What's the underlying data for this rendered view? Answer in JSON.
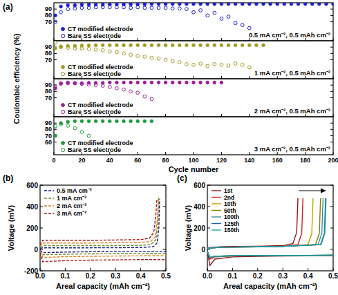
{
  "chart_data": [
    {
      "type": "scatter",
      "title": "(a)",
      "ylabel": "Coulombic efficiency (%)",
      "annotation": "0.5 mA cm⁻², 0.5 mAh cm⁻²",
      "xlim": [
        0,
        200
      ],
      "ylim": [
        40,
        100
      ],
      "xticks": [
        0,
        20,
        40,
        60,
        80,
        100,
        120,
        140,
        160,
        180,
        200
      ],
      "yticks": [
        70,
        80,
        90
      ],
      "tick_labels": "y",
      "legend": "lower left",
      "grid": false,
      "series": [
        {
          "name": "CT modified electrode",
          "color": "#1c1cd8",
          "marker": "filled_circle",
          "x": [
            1,
            5,
            10,
            15,
            20,
            25,
            30,
            35,
            40,
            45,
            50,
            55,
            60,
            65,
            70,
            75,
            80,
            85,
            90,
            95,
            100,
            105,
            110,
            115,
            120,
            125,
            130,
            135,
            140,
            145,
            150,
            155,
            160,
            165,
            170,
            175,
            180,
            185,
            190,
            195,
            200
          ],
          "values": [
            80,
            94,
            96,
            96,
            97,
            97,
            97,
            97,
            97.5,
            97.5,
            97.5,
            97.5,
            97.5,
            97.5,
            98,
            98,
            98,
            98,
            98,
            98,
            98,
            98,
            98,
            98,
            98,
            98,
            98,
            98,
            98,
            98,
            98,
            98,
            98,
            98,
            98,
            98,
            98,
            98,
            98,
            98,
            98
          ]
        },
        {
          "name": "Bare SS electrode",
          "color": "#1c1cd8",
          "marker": "open_circle",
          "x": [
            1,
            5,
            10,
            15,
            20,
            25,
            30,
            35,
            40,
            45,
            50,
            55,
            60,
            65,
            70,
            75,
            80,
            85,
            90,
            95,
            100,
            105,
            110,
            115,
            120,
            125,
            130,
            135,
            140
          ],
          "values": [
            70,
            85,
            90,
            91,
            92,
            92,
            93,
            93,
            93,
            93,
            93,
            92,
            93,
            92,
            92,
            92,
            92,
            91,
            91,
            90,
            85,
            88,
            80,
            84,
            75,
            78,
            68,
            65,
            60
          ]
        }
      ]
    },
    {
      "type": "scatter",
      "annotation": "1 mA cm⁻², 0.5 mAh cm⁻²",
      "xlim": [
        0,
        200
      ],
      "ylim": [
        40,
        100
      ],
      "xticks": [
        0,
        20,
        40,
        60,
        80,
        100,
        120,
        140,
        160,
        180,
        200
      ],
      "yticks": [
        70,
        80,
        90
      ],
      "tick_labels": "y",
      "legend": "lower left",
      "grid": false,
      "series": [
        {
          "name": "CT modified electrode",
          "color": "#a09a1e",
          "marker": "filled_circle",
          "x": [
            1,
            5,
            10,
            15,
            20,
            25,
            30,
            35,
            40,
            45,
            50,
            55,
            60,
            65,
            70,
            75,
            80,
            85,
            90,
            95,
            100,
            105,
            110,
            115,
            120,
            125,
            130,
            135,
            140,
            145,
            150
          ],
          "values": [
            88,
            91,
            92,
            92,
            92.5,
            92.5,
            93,
            93,
            93,
            93,
            93,
            93,
            93,
            93,
            93,
            93,
            93,
            93,
            93,
            93,
            93,
            93,
            93,
            93,
            93,
            93,
            93,
            93,
            93,
            93,
            93
          ]
        },
        {
          "name": "Bare SS electrode",
          "color": "#a09a1e",
          "marker": "open_circle",
          "x": [
            1,
            5,
            10,
            15,
            20,
            25,
            30,
            35,
            40,
            45,
            50,
            55,
            60,
            65,
            70,
            75,
            80,
            85,
            90,
            95,
            100,
            105,
            110,
            115,
            120,
            125,
            130,
            135,
            140
          ],
          "values": [
            97,
            90,
            89,
            88,
            88,
            87,
            86,
            85,
            83,
            82,
            80,
            78,
            76,
            75,
            73,
            72,
            70,
            68,
            66,
            63,
            62,
            64,
            60,
            63,
            62,
            61,
            64,
            62,
            58
          ]
        }
      ]
    },
    {
      "type": "scatter",
      "annotation": "2 mA cm⁻², 0.5 mAh cm⁻²",
      "xlim": [
        0,
        200
      ],
      "ylim": [
        40,
        100
      ],
      "xticks": [
        0,
        20,
        40,
        60,
        80,
        100,
        120,
        140,
        160,
        180,
        200
      ],
      "yticks": [
        70,
        80,
        90
      ],
      "tick_labels": "y",
      "legend": "lower left",
      "grid": false,
      "series": [
        {
          "name": "CT modified electrode",
          "color": "#9b1f9b",
          "marker": "filled_circle",
          "x": [
            1,
            5,
            10,
            15,
            20,
            25,
            30,
            35,
            40,
            45,
            50,
            55,
            60,
            65,
            70,
            75,
            80,
            85,
            90,
            95,
            100,
            105,
            110,
            115,
            120
          ],
          "values": [
            85,
            92,
            93,
            93,
            93,
            93.5,
            93.5,
            93.5,
            94,
            94,
            94,
            94,
            94,
            94,
            94,
            94,
            94,
            94,
            94,
            94,
            94,
            94,
            94,
            94,
            94
          ]
        },
        {
          "name": "Bare SS electrode",
          "color": "#9b1f9b",
          "marker": "open_circle",
          "x": [
            1,
            5,
            10,
            15,
            20,
            25,
            30,
            35,
            40,
            45,
            50,
            55,
            60,
            65,
            70
          ],
          "values": [
            88,
            93,
            94,
            93,
            92,
            91,
            90,
            89,
            87,
            85,
            83,
            80,
            78,
            72,
            68
          ]
        }
      ]
    },
    {
      "type": "scatter",
      "xlabel": "Cycle number",
      "annotation": "3 mA cm⁻², 0.5 mAh cm⁻²",
      "xlim": [
        0,
        200
      ],
      "ylim": [
        40,
        100
      ],
      "xticks": [
        0,
        20,
        40,
        60,
        80,
        100,
        120,
        140,
        160,
        180,
        200
      ],
      "yticks": [
        60,
        70,
        80,
        90
      ],
      "legend": "lower left",
      "grid": false,
      "series": [
        {
          "name": "CT modified electrode",
          "color": "#1e9b3c",
          "marker": "filled_circle",
          "x": [
            1,
            5,
            10,
            15,
            20,
            25,
            30,
            35,
            40,
            45,
            50,
            55,
            60,
            65,
            70
          ],
          "values": [
            70,
            90,
            92,
            93,
            93,
            93,
            93,
            93,
            93,
            93,
            93,
            93,
            93,
            93,
            93
          ]
        },
        {
          "name": "Bare SS electrode",
          "color": "#1e9b3c",
          "marker": "open_circle",
          "x": [
            1,
            5,
            10,
            15,
            20,
            25
          ],
          "values": [
            85,
            88,
            86,
            82,
            76,
            70
          ]
        }
      ]
    },
    {
      "type": "line",
      "title": "(b)",
      "xlabel": "Areal capacity (mAh cm⁻²)",
      "ylabel": "Voltage (mV)",
      "xlim": [
        0,
        0.5
      ],
      "ylim": [
        -200,
        600
      ],
      "xticks": [
        {
          "value": 0,
          "label": "0.0"
        },
        {
          "value": 0.1,
          "label": "0.1"
        },
        {
          "value": 0.2,
          "label": "0.2"
        },
        {
          "value": 0.3,
          "label": "0.3"
        },
        {
          "value": 0.4,
          "label": "0.4"
        },
        {
          "value": 0.5,
          "label": "0.5"
        }
      ],
      "yticks": [
        -200,
        0,
        200,
        400,
        600
      ],
      "legend": "upper left",
      "grid": false,
      "series": [
        {
          "name": "0.5 mA cm⁻²",
          "color": "#1a1a8c",
          "line_style": "dashed",
          "x": [
            0,
            0.01,
            0.1,
            0.2,
            0.3,
            0.4,
            0.5,
            null,
            0,
            0.01,
            0.1,
            0.2,
            0.3,
            0.4,
            0.45,
            0.465,
            0.472,
            0.475
          ],
          "values": [
            -10,
            -30,
            -25,
            -22,
            -20,
            -20,
            -20,
            null,
            10,
            15,
            15,
            15,
            16,
            18,
            25,
            60,
            200,
            470
          ]
        },
        {
          "name": "1 mA cm⁻²",
          "color": "#6b8e23",
          "line_style": "dashed",
          "x": [
            0,
            0.01,
            0.1,
            0.2,
            0.3,
            0.4,
            0.5,
            null,
            0,
            0.01,
            0.1,
            0.2,
            0.3,
            0.4,
            0.44,
            0.46,
            0.468,
            0.472
          ],
          "values": [
            -15,
            -50,
            -45,
            -42,
            -40,
            -40,
            -40,
            null,
            20,
            35,
            35,
            35,
            36,
            38,
            45,
            90,
            250,
            490
          ]
        },
        {
          "name": "2 mA cm⁻²",
          "color": "#e08020",
          "line_style": "dashed",
          "x": [
            0,
            0.01,
            0.1,
            0.2,
            0.3,
            0.4,
            0.5,
            null,
            0,
            0.01,
            0.1,
            0.2,
            0.3,
            0.4,
            0.44,
            0.458,
            0.466,
            0.47
          ],
          "values": [
            -20,
            -75,
            -68,
            -65,
            -62,
            -60,
            -60,
            null,
            30,
            60,
            60,
            60,
            62,
            65,
            75,
            120,
            280,
            480
          ]
        },
        {
          "name": "3 mA cm⁻²",
          "color": "#a01818",
          "line_style": "dashed",
          "x": [
            0,
            0.01,
            0.1,
            0.2,
            0.3,
            0.4,
            0.5,
            null,
            0,
            0.01,
            0.1,
            0.2,
            0.3,
            0.4,
            0.435,
            0.452,
            0.46,
            0.464
          ],
          "values": [
            -30,
            -115,
            -105,
            -100,
            -98,
            -95,
            -95,
            null,
            40,
            85,
            85,
            85,
            88,
            92,
            105,
            160,
            320,
            470
          ]
        }
      ]
    },
    {
      "type": "line",
      "title": "(c)",
      "xlabel": "Areal capacity (mAh cm⁻²)",
      "ylabel": "Voltage (mV)",
      "xlim": [
        0,
        0.5
      ],
      "ylim": [
        -200,
        600
      ],
      "xticks": [
        {
          "value": 0,
          "label": "0.0"
        },
        {
          "value": 0.1,
          "label": "0.1"
        },
        {
          "value": 0.2,
          "label": "0.2"
        },
        {
          "value": 0.3,
          "label": "0.3"
        },
        {
          "value": 0.4,
          "label": "0.4"
        },
        {
          "value": 0.5,
          "label": "0.5"
        }
      ],
      "yticks": [
        0,
        200,
        400,
        600
      ],
      "legend": "upper left",
      "grid": false,
      "series": [
        {
          "name": "1st",
          "color": "#8b1a1a",
          "line_style": "solid",
          "x": [
            0,
            0.01,
            0.03,
            0.1,
            0.2,
            0.3,
            0.4,
            0.5,
            null,
            0,
            0.05,
            0.1,
            0.2,
            0.3,
            0.34,
            0.355,
            0.36
          ],
          "values": [
            -20,
            -150,
            -90,
            -70,
            -65,
            -62,
            -60,
            -60,
            null,
            15,
            25,
            27,
            30,
            35,
            55,
            160,
            480
          ]
        },
        {
          "name": "2nd",
          "color": "#d62020",
          "line_style": "solid",
          "x": [
            0,
            0.01,
            0.03,
            0.1,
            0.2,
            0.3,
            0.4,
            0.5,
            null,
            0,
            0.05,
            0.1,
            0.2,
            0.3,
            0.36,
            0.375,
            0.38
          ],
          "values": [
            -20,
            -90,
            -70,
            -62,
            -60,
            -58,
            -57,
            -57,
            null,
            10,
            20,
            22,
            24,
            28,
            45,
            150,
            480
          ]
        },
        {
          "name": "10th",
          "color": "#c8a000",
          "line_style": "solid",
          "x": [
            0,
            0.01,
            0.03,
            0.1,
            0.2,
            0.3,
            0.4,
            0.5,
            null,
            0,
            0.05,
            0.1,
            0.2,
            0.3,
            0.4,
            0.415,
            0.42
          ],
          "values": [
            -20,
            -75,
            -65,
            -60,
            -58,
            -57,
            -56,
            -55,
            null,
            10,
            20,
            22,
            24,
            28,
            45,
            150,
            480
          ]
        },
        {
          "name": "50th",
          "color": "#808000",
          "line_style": "solid",
          "x": [
            0,
            0.01,
            0.03,
            0.1,
            0.2,
            0.3,
            0.4,
            0.5,
            null,
            0,
            0.05,
            0.1,
            0.2,
            0.3,
            0.43,
            0.445,
            0.45
          ],
          "values": [
            -20,
            -75,
            -65,
            -60,
            -58,
            -57,
            -56,
            -55,
            null,
            10,
            20,
            22,
            24,
            28,
            45,
            150,
            480
          ]
        },
        {
          "name": "100th",
          "color": "#3a9090",
          "line_style": "solid",
          "x": [
            0,
            0.01,
            0.03,
            0.1,
            0.2,
            0.3,
            0.4,
            0.5,
            null,
            0,
            0.05,
            0.1,
            0.2,
            0.3,
            0.44,
            0.455,
            0.46
          ],
          "values": [
            -20,
            -75,
            -65,
            -60,
            -58,
            -57,
            -56,
            -55,
            null,
            10,
            20,
            22,
            24,
            28,
            45,
            150,
            480
          ]
        },
        {
          "name": "125th",
          "color": "#2060c0",
          "line_style": "solid",
          "x": [
            0,
            0.01,
            0.03,
            0.1,
            0.2,
            0.3,
            0.4,
            0.5,
            null,
            0,
            0.05,
            0.1,
            0.2,
            0.3,
            0.45,
            0.465,
            0.47
          ],
          "values": [
            -20,
            -75,
            -65,
            -60,
            -58,
            -57,
            -56,
            -55,
            null,
            10,
            20,
            22,
            24,
            28,
            45,
            150,
            480
          ]
        },
        {
          "name": "150th",
          "color": "#20a0a0",
          "line_style": "solid",
          "x": [
            0,
            0.01,
            0.03,
            0.1,
            0.2,
            0.3,
            0.4,
            0.5,
            null,
            0,
            0.05,
            0.1,
            0.2,
            0.3,
            0.452,
            0.467,
            0.472
          ],
          "values": [
            -20,
            -75,
            -65,
            -60,
            -58,
            -57,
            -56,
            -55,
            null,
            10,
            20,
            22,
            24,
            28,
            45,
            150,
            480
          ]
        }
      ]
    }
  ]
}
